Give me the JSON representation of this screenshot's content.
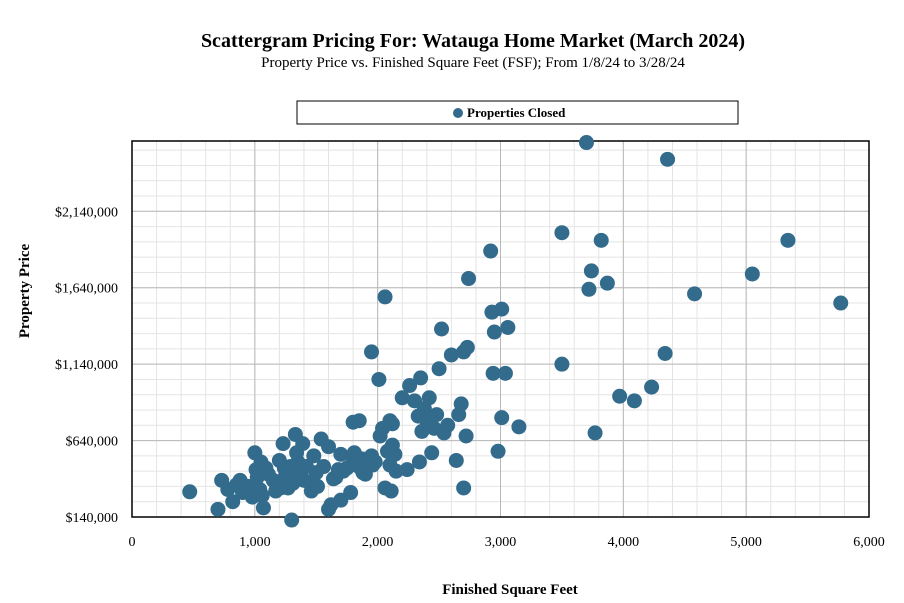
{
  "chart_data": {
    "type": "scatter",
    "title": "Scattergram Pricing For: Watauga Home Market (March 2024)",
    "subtitle": "Property Price vs. Finished Square Feet (FSF); From 1/8/24 to 3/28/24",
    "xlabel": "Finished Square Feet",
    "ylabel": "Property Price",
    "xlim": [
      0,
      6000
    ],
    "ylim": [
      140000,
      2600000
    ],
    "x_ticks": [
      0,
      1000,
      2000,
      3000,
      4000,
      5000,
      6000
    ],
    "x_tick_labels": [
      "0",
      "1,000",
      "2,000",
      "3,000",
      "4,000",
      "5,000",
      "6,000"
    ],
    "y_ticks": [
      140000,
      640000,
      1140000,
      1640000,
      2140000
    ],
    "y_tick_labels": [
      "$140,000",
      "$640,000",
      "$1,140,000",
      "$1,640,000",
      "$2,140,000"
    ],
    "grid": true,
    "legend_position": "top-center",
    "marker_color": "#336b8c",
    "series": [
      {
        "name": "Properties Closed",
        "points": [
          [
            470,
            305000
          ],
          [
            700,
            190000
          ],
          [
            730,
            380000
          ],
          [
            780,
            320000
          ],
          [
            820,
            240000
          ],
          [
            850,
            350000
          ],
          [
            880,
            380000
          ],
          [
            900,
            300000
          ],
          [
            950,
            340000
          ],
          [
            980,
            270000
          ],
          [
            1000,
            320000
          ],
          [
            1000,
            560000
          ],
          [
            1010,
            450000
          ],
          [
            1020,
            400000
          ],
          [
            1040,
            320000
          ],
          [
            1050,
            500000
          ],
          [
            1060,
            280000
          ],
          [
            1070,
            200000
          ],
          [
            1090,
            460000
          ],
          [
            1110,
            420000
          ],
          [
            1150,
            380000
          ],
          [
            1170,
            310000
          ],
          [
            1200,
            510000
          ],
          [
            1210,
            330000
          ],
          [
            1230,
            620000
          ],
          [
            1240,
            460000
          ],
          [
            1250,
            410000
          ],
          [
            1270,
            330000
          ],
          [
            1290,
            470000
          ],
          [
            1300,
            120000
          ],
          [
            1310,
            360000
          ],
          [
            1330,
            680000
          ],
          [
            1340,
            560000
          ],
          [
            1350,
            500000
          ],
          [
            1360,
            430000
          ],
          [
            1380,
            400000
          ],
          [
            1390,
            620000
          ],
          [
            1400,
            380000
          ],
          [
            1420,
            470000
          ],
          [
            1450,
            370000
          ],
          [
            1460,
            310000
          ],
          [
            1480,
            540000
          ],
          [
            1500,
            430000
          ],
          [
            1510,
            340000
          ],
          [
            1540,
            650000
          ],
          [
            1560,
            470000
          ],
          [
            1600,
            190000
          ],
          [
            1600,
            600000
          ],
          [
            1620,
            220000
          ],
          [
            1640,
            390000
          ],
          [
            1660,
            400000
          ],
          [
            1680,
            450000
          ],
          [
            1700,
            550000
          ],
          [
            1700,
            250000
          ],
          [
            1720,
            440000
          ],
          [
            1750,
            460000
          ],
          [
            1780,
            300000
          ],
          [
            1800,
            510000
          ],
          [
            1800,
            760000
          ],
          [
            1810,
            560000
          ],
          [
            1830,
            480000
          ],
          [
            1850,
            770000
          ],
          [
            1860,
            460000
          ],
          [
            1870,
            520000
          ],
          [
            1880,
            430000
          ],
          [
            1900,
            420000
          ],
          [
            1920,
            470000
          ],
          [
            1950,
            1220000
          ],
          [
            1950,
            540000
          ],
          [
            1960,
            480000
          ],
          [
            1980,
            500000
          ],
          [
            2010,
            1040000
          ],
          [
            2020,
            670000
          ],
          [
            2040,
            720000
          ],
          [
            2060,
            1580000
          ],
          [
            2060,
            330000
          ],
          [
            2080,
            570000
          ],
          [
            2100,
            770000
          ],
          [
            2100,
            480000
          ],
          [
            2110,
            310000
          ],
          [
            2120,
            610000
          ],
          [
            2120,
            750000
          ],
          [
            2140,
            550000
          ],
          [
            2150,
            440000
          ],
          [
            2200,
            920000
          ],
          [
            2240,
            450000
          ],
          [
            2260,
            1000000
          ],
          [
            2300,
            900000
          ],
          [
            2330,
            800000
          ],
          [
            2340,
            500000
          ],
          [
            2350,
            1050000
          ],
          [
            2360,
            700000
          ],
          [
            2380,
            850000
          ],
          [
            2400,
            770000
          ],
          [
            2420,
            920000
          ],
          [
            2440,
            560000
          ],
          [
            2460,
            720000
          ],
          [
            2480,
            810000
          ],
          [
            2500,
            1110000
          ],
          [
            2520,
            1370000
          ],
          [
            2540,
            690000
          ],
          [
            2570,
            740000
          ],
          [
            2600,
            1200000
          ],
          [
            2640,
            510000
          ],
          [
            2660,
            810000
          ],
          [
            2680,
            880000
          ],
          [
            2700,
            1220000
          ],
          [
            2700,
            330000
          ],
          [
            2720,
            670000
          ],
          [
            2730,
            1250000
          ],
          [
            2740,
            1700000
          ],
          [
            2920,
            1880000
          ],
          [
            2930,
            1480000
          ],
          [
            2940,
            1080000
          ],
          [
            2950,
            1350000
          ],
          [
            2980,
            570000
          ],
          [
            3010,
            1500000
          ],
          [
            3010,
            790000
          ],
          [
            3040,
            1080000
          ],
          [
            3060,
            1380000
          ],
          [
            3150,
            730000
          ],
          [
            3500,
            2000000
          ],
          [
            3500,
            1140000
          ],
          [
            3700,
            2590000
          ],
          [
            3720,
            1630000
          ],
          [
            3740,
            1750000
          ],
          [
            3770,
            690000
          ],
          [
            3820,
            1950000
          ],
          [
            3870,
            1670000
          ],
          [
            3970,
            930000
          ],
          [
            4090,
            900000
          ],
          [
            4230,
            990000
          ],
          [
            4340,
            1210000
          ],
          [
            4360,
            2480000
          ],
          [
            4580,
            1600000
          ],
          [
            5050,
            1730000
          ],
          [
            5340,
            1950000
          ],
          [
            5770,
            1540000
          ]
        ]
      }
    ]
  }
}
